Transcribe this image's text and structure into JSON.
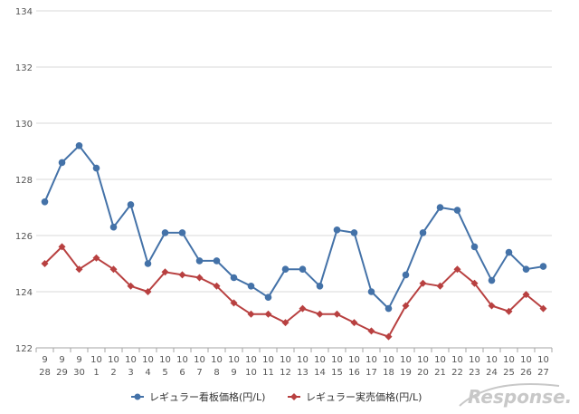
{
  "chart_data": {
    "type": "line",
    "title": "",
    "xlabel": "",
    "ylabel": "",
    "ylim": [
      122,
      134
    ],
    "yticks": [
      122,
      124,
      126,
      128,
      130,
      132,
      134
    ],
    "grid": true,
    "legend_position": "bottom",
    "categories": [
      {
        "month": "9",
        "day": "28"
      },
      {
        "month": "9",
        "day": "29"
      },
      {
        "month": "9",
        "day": "30"
      },
      {
        "month": "10",
        "day": "1"
      },
      {
        "month": "10",
        "day": "2"
      },
      {
        "month": "10",
        "day": "3"
      },
      {
        "month": "10",
        "day": "4"
      },
      {
        "month": "10",
        "day": "5"
      },
      {
        "month": "10",
        "day": "6"
      },
      {
        "month": "10",
        "day": "7"
      },
      {
        "month": "10",
        "day": "8"
      },
      {
        "month": "10",
        "day": "9"
      },
      {
        "month": "10",
        "day": "10"
      },
      {
        "month": "10",
        "day": "11"
      },
      {
        "month": "10",
        "day": "12"
      },
      {
        "month": "10",
        "day": "13"
      },
      {
        "month": "10",
        "day": "14"
      },
      {
        "month": "10",
        "day": "15"
      },
      {
        "month": "10",
        "day": "16"
      },
      {
        "month": "10",
        "day": "17"
      },
      {
        "month": "10",
        "day": "18"
      },
      {
        "month": "10",
        "day": "19"
      },
      {
        "month": "10",
        "day": "20"
      },
      {
        "month": "10",
        "day": "21"
      },
      {
        "month": "10",
        "day": "22"
      },
      {
        "month": "10",
        "day": "23"
      },
      {
        "month": "10",
        "day": "24"
      },
      {
        "month": "10",
        "day": "25"
      },
      {
        "month": "10",
        "day": "26"
      },
      {
        "month": "10",
        "day": "27"
      }
    ],
    "series": [
      {
        "name": "レギュラー看板価格(円/L)",
        "color": "#4472A8",
        "marker": "circle",
        "values": [
          127.2,
          128.6,
          129.2,
          128.4,
          126.3,
          127.1,
          125.0,
          126.1,
          126.1,
          125.1,
          125.1,
          124.5,
          124.2,
          123.8,
          124.8,
          124.8,
          124.2,
          126.2,
          126.1,
          124.0,
          123.4,
          124.6,
          126.1,
          127.0,
          126.9,
          125.6,
          124.4,
          125.4,
          124.8,
          124.9
        ]
      },
      {
        "name": "レギュラー実売価格(円/L)",
        "color": "#B84040",
        "marker": "diamond",
        "values": [
          125.0,
          125.6,
          124.8,
          125.2,
          124.8,
          124.2,
          124.0,
          124.7,
          124.6,
          124.5,
          124.2,
          123.6,
          123.2,
          123.2,
          122.9,
          123.4,
          123.2,
          123.2,
          122.9,
          122.6,
          122.4,
          123.5,
          124.3,
          124.2,
          124.8,
          124.3,
          123.5,
          123.3,
          123.9,
          123.4
        ]
      }
    ]
  },
  "watermark": {
    "text": "Response."
  }
}
